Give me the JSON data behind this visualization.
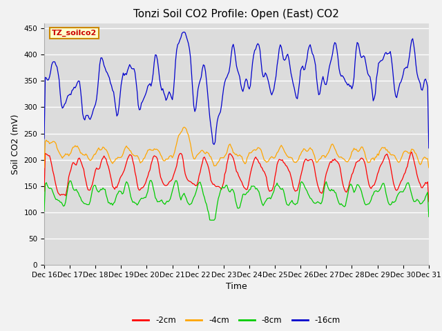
{
  "title": "Tonzi Soil CO2 Profile: Open (East) CO2",
  "ylabel": "Soil CO2 (mV)",
  "xlabel": "Time",
  "legend_label": "TZ_soilco2",
  "series_labels": [
    "-2cm",
    "-4cm",
    "-8cm",
    "-16cm"
  ],
  "series_colors": [
    "#ff0000",
    "#ffa500",
    "#00cc00",
    "#0000cc"
  ],
  "ylim": [
    0,
    460
  ],
  "yticks": [
    0,
    50,
    100,
    150,
    200,
    250,
    300,
    350,
    400,
    450
  ],
  "x_start_day": 16,
  "x_end_day": 31,
  "x_tick_days": [
    16,
    17,
    18,
    19,
    20,
    21,
    22,
    23,
    24,
    25,
    26,
    27,
    28,
    29,
    30,
    31
  ],
  "plot_bg_color": "#dcdcdc",
  "grid_color": "#ffffff",
  "fig_bg_color": "#f2f2f2",
  "title_fontsize": 11,
  "tick_fontsize": 7.5,
  "label_fontsize": 9,
  "seed": 42,
  "n_pts": 361
}
